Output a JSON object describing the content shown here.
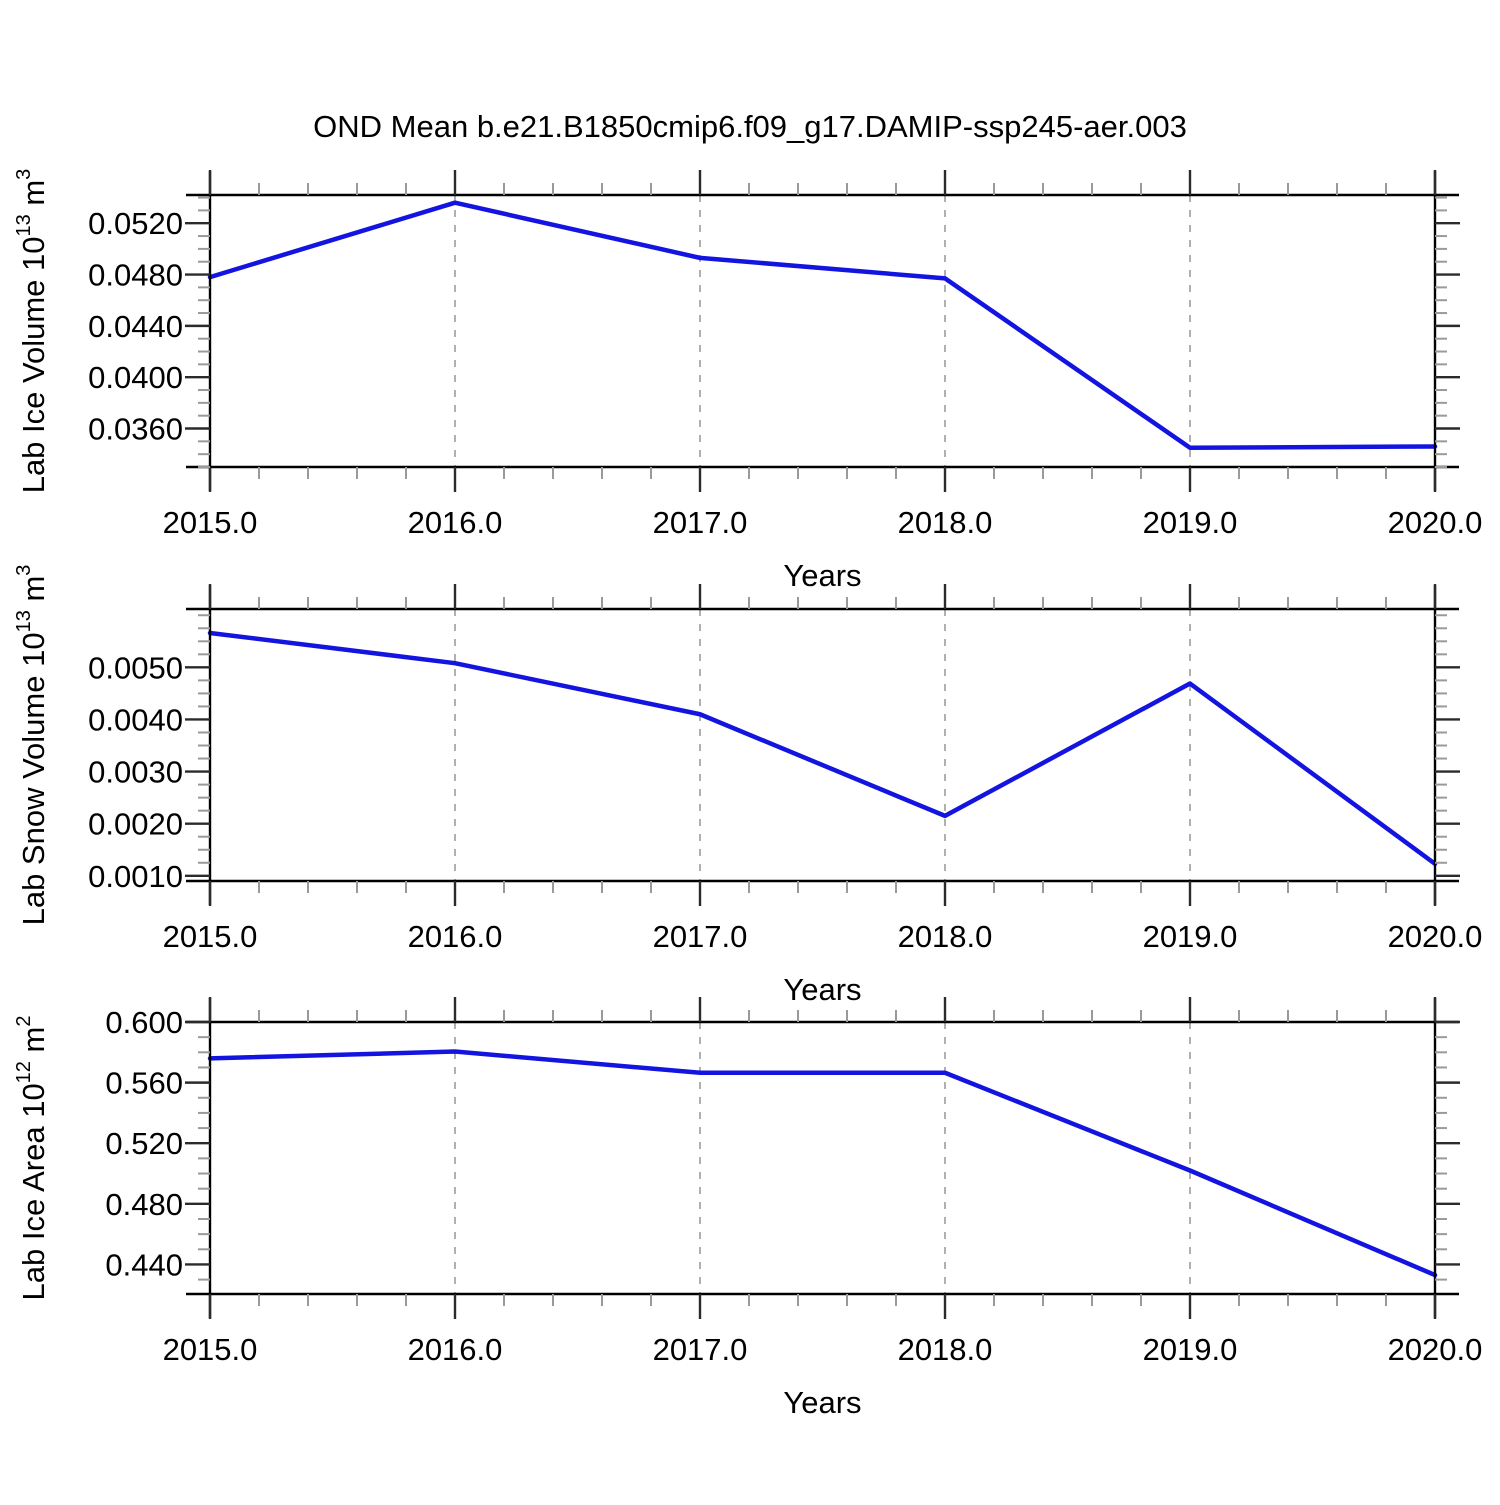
{
  "title": "OND Mean b.e21.B1850cmip6.f09_g17.DAMIP-ssp245-aer.003",
  "colors": {
    "line": "#1414e0",
    "frame": "#000000",
    "major_tick": "#2b2b2b",
    "minor_tick": "#9a9a9a",
    "gridline": "#a8a8a8",
    "text": "#000000",
    "background": "#ffffff"
  },
  "x_axis": {
    "label": "Years",
    "lim": [
      2015.0,
      2020.0
    ],
    "minor_step": 0.2,
    "gridline_years": [
      2016,
      2017,
      2018,
      2019
    ],
    "ticks": [
      {
        "v": 2015.0,
        "label": "2015.0"
      },
      {
        "v": 2016.0,
        "label": "2016.0"
      },
      {
        "v": 2017.0,
        "label": "2017.0"
      },
      {
        "v": 2018.0,
        "label": "2018.0"
      },
      {
        "v": 2019.0,
        "label": "2019.0"
      },
      {
        "v": 2020.0,
        "label": "2020.0"
      }
    ]
  },
  "chart_data": [
    {
      "type": "line",
      "name": "lab-ice-volume",
      "ylabel": {
        "text": "Lab Ice Volume 10¹³ m³",
        "parts": [
          {
            "t": "Lab Ice Volume 10",
            "sup": false
          },
          {
            "t": "13",
            "sup": true
          },
          {
            "t": " m",
            "sup": false
          },
          {
            "t": "3",
            "sup": true
          }
        ]
      },
      "xlabel": "Years",
      "x": [
        2015.0,
        2016.0,
        2017.0,
        2018.0,
        2019.0,
        2020.0
      ],
      "values": [
        0.0478,
        0.0536,
        0.0493,
        0.0477,
        0.0345,
        0.0346
      ],
      "ylim": [
        0.033,
        0.0542
      ],
      "y_minor_step": 0.001,
      "grid": "vertical-dashed",
      "legend": "none",
      "yticks": [
        {
          "v": 0.052,
          "label": "0.0520"
        },
        {
          "v": 0.048,
          "label": "0.0480"
        },
        {
          "v": 0.044,
          "label": "0.0440"
        },
        {
          "v": 0.04,
          "label": "0.0400"
        },
        {
          "v": 0.036,
          "label": "0.0360"
        }
      ]
    },
    {
      "type": "line",
      "name": "lab-snow-volume",
      "ylabel": {
        "text": "Lab Snow Volume 10¹³ m³",
        "parts": [
          {
            "t": "Lab Snow Volume 10",
            "sup": false
          },
          {
            "t": "13",
            "sup": true
          },
          {
            "t": " m",
            "sup": false
          },
          {
            "t": "3",
            "sup": true
          }
        ]
      },
      "xlabel": "Years",
      "x": [
        2015.0,
        2016.0,
        2017.0,
        2018.0,
        2019.0,
        2020.0
      ],
      "values": [
        0.00566,
        0.00508,
        0.0041,
        0.00215,
        0.00469,
        0.00123
      ],
      "ylim": [
        0.0009,
        0.00612
      ],
      "y_minor_step": 0.00025,
      "grid": "vertical-dashed",
      "legend": "none",
      "yticks": [
        {
          "v": 0.005,
          "label": "0.0050"
        },
        {
          "v": 0.004,
          "label": "0.0040"
        },
        {
          "v": 0.003,
          "label": "0.0030"
        },
        {
          "v": 0.002,
          "label": "0.0020"
        },
        {
          "v": 0.001,
          "label": "0.0010"
        }
      ]
    },
    {
      "type": "line",
      "name": "lab-ice-area",
      "ylabel": {
        "text": "Lab Ice Area 10¹² m²",
        "parts": [
          {
            "t": "Lab Ice Area 10",
            "sup": false
          },
          {
            "t": "12",
            "sup": true
          },
          {
            "t": " m",
            "sup": false
          },
          {
            "t": "2",
            "sup": true
          }
        ]
      },
      "xlabel": "Years",
      "x": [
        2015.0,
        2016.0,
        2017.0,
        2018.0,
        2019.0,
        2020.0
      ],
      "values": [
        0.576,
        0.5805,
        0.5665,
        0.5665,
        0.502,
        0.433
      ],
      "ylim": [
        0.4205,
        0.6
      ],
      "y_minor_step": 0.01,
      "grid": "vertical-dashed",
      "legend": "none",
      "yticks": [
        {
          "v": 0.6,
          "label": "0.600"
        },
        {
          "v": 0.56,
          "label": "0.560"
        },
        {
          "v": 0.52,
          "label": "0.520"
        },
        {
          "v": 0.48,
          "label": "0.480"
        },
        {
          "v": 0.44,
          "label": "0.440"
        }
      ]
    }
  ]
}
